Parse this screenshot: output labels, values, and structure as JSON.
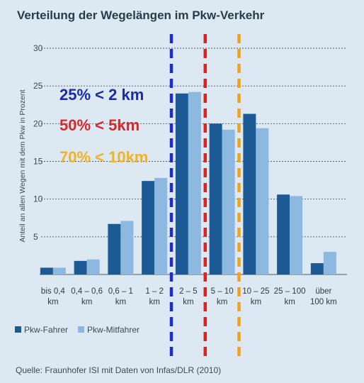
{
  "chart_data": {
    "type": "bar",
    "title": "Verteilung der Wegelängen im Pkw-Verkehr",
    "ylabel": "Anteil an allen Wegen mit dem Pkw in Prozent",
    "xlabel": "",
    "ylim": [
      0,
      30
    ],
    "yticks": [
      5,
      10,
      15,
      20,
      25,
      30
    ],
    "grid": true,
    "legend_position": "bottom-left",
    "categories": [
      [
        "bis 0,4",
        "km"
      ],
      [
        "0,4 – 0,6",
        "km"
      ],
      [
        "0,6 – 1",
        "km"
      ],
      [
        "1 – 2",
        "km"
      ],
      [
        "2 – 5",
        "km"
      ],
      [
        "5 – 10",
        "km"
      ],
      [
        "10 – 25",
        "km"
      ],
      [
        "25 – 100",
        "km"
      ],
      [
        "über",
        "100 km"
      ]
    ],
    "series": [
      {
        "name": "Pkw-Fahrer",
        "color": "#1c5a96",
        "values": [
          0.9,
          1.8,
          6.7,
          12.4,
          24.0,
          20.0,
          21.3,
          10.6,
          1.5
        ]
      },
      {
        "name": "Pkw-Mitfahrer",
        "color": "#8db8e0",
        "values": [
          0.9,
          2.0,
          7.1,
          12.8,
          24.2,
          19.2,
          19.4,
          10.4,
          3.0
        ]
      }
    ],
    "annotations": [
      {
        "text": "25% < 2 km",
        "color": "#1a2aa8"
      },
      {
        "text": "50% < 5km",
        "color": "#d42a2a"
      },
      {
        "text": "70% < 10km",
        "color": "#f2b323"
      }
    ],
    "threshold_lines": [
      {
        "x_between": [
          3,
          4
        ],
        "color": "#1f2ec0"
      },
      {
        "x_between": [
          4,
          5
        ],
        "color": "#dd2222"
      },
      {
        "x_between": [
          5,
          6
        ],
        "color": "#f0a21c"
      }
    ],
    "source": "Quelle: Fraunhofer ISI mit Daten von Infas/DLR (2010)"
  }
}
